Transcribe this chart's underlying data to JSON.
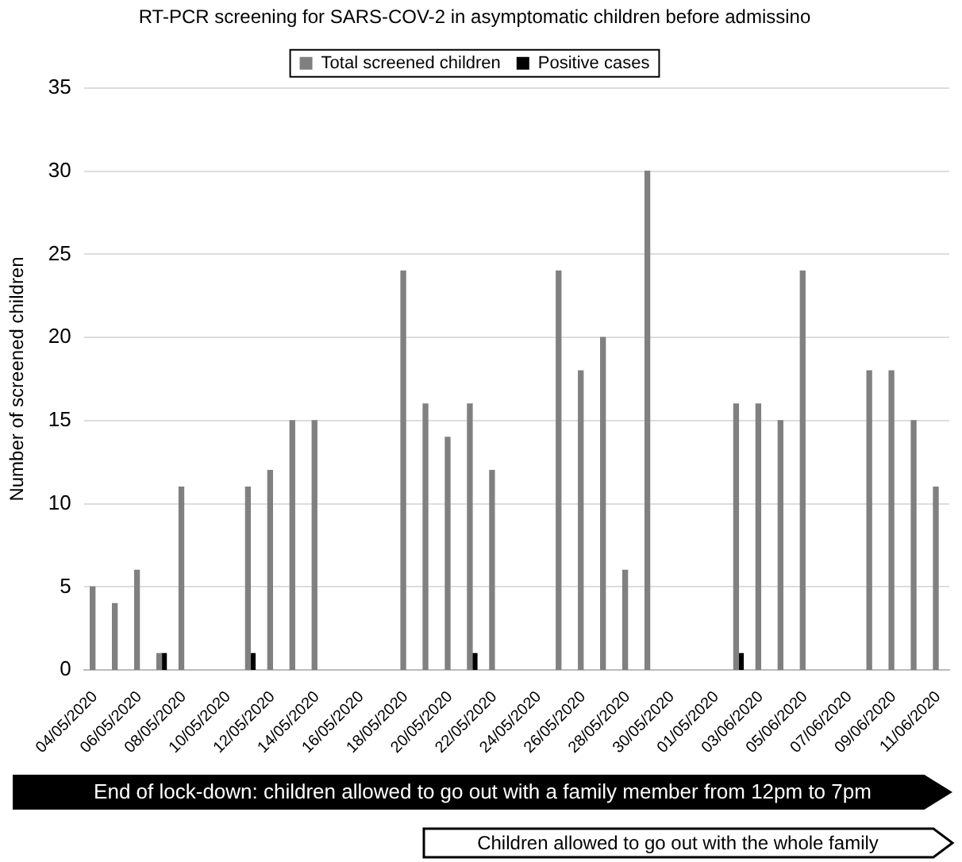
{
  "chart_data": {
    "type": "bar",
    "title": "RT-PCR screening for SARS-COV-2 in asymptomatic children before admissino",
    "ylabel": "Number of screened children",
    "categories": [
      "04/05/2020",
      null,
      "06/05/2020",
      null,
      "08/05/2020",
      null,
      "10/05/2020",
      null,
      "12/05/2020",
      null,
      "14/05/2020",
      null,
      "16/05/2020",
      null,
      "18/05/2020",
      null,
      "20/05/2020",
      null,
      "22/05/2020",
      null,
      "24/05/2020",
      null,
      "26/05/2020",
      null,
      "28/05/2020",
      null,
      "30/05/2020",
      null,
      "01/05/2020",
      null,
      "03/06/2020",
      null,
      "05/06/2020",
      null,
      "07/06/2020",
      null,
      "09/06/2020",
      null,
      "11/06/2020"
    ],
    "series": [
      {
        "name": "Total screened children",
        "color": "#808080",
        "values": [
          5,
          4,
          6,
          1,
          11,
          null,
          null,
          11,
          12,
          15,
          15,
          null,
          null,
          null,
          24,
          16,
          14,
          16,
          12,
          null,
          null,
          24,
          18,
          20,
          6,
          30,
          null,
          null,
          null,
          16,
          16,
          15,
          24,
          null,
          null,
          18,
          18,
          15,
          11
        ]
      },
      {
        "name": "Positive cases",
        "color": "#000000",
        "values": [
          null,
          null,
          null,
          1,
          null,
          null,
          null,
          1,
          null,
          null,
          null,
          null,
          null,
          null,
          null,
          null,
          null,
          1,
          null,
          null,
          null,
          null,
          null,
          null,
          null,
          null,
          null,
          null,
          null,
          1,
          null,
          null,
          null,
          null,
          null,
          null,
          null,
          null,
          null
        ]
      }
    ],
    "ylim": [
      0,
      35
    ],
    "yticks": [
      0,
      5,
      10,
      15,
      20,
      25,
      30,
      35
    ],
    "grid": "y",
    "legend": "top",
    "annotations": [
      "End of lock-down: children allowed to go out with a family member from 12pm to 7pm",
      "Children allowed to go out with the whole family"
    ]
  }
}
